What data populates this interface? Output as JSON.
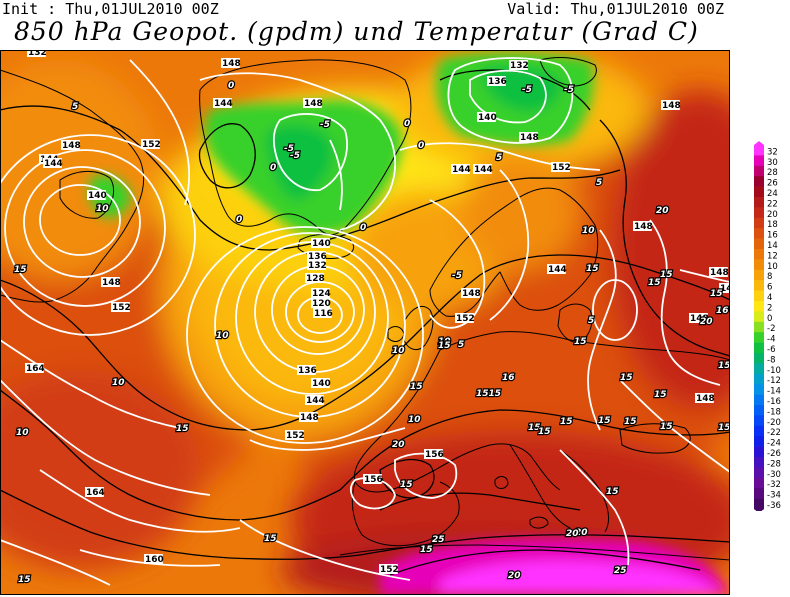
{
  "header": {
    "init": "Init : Thu,01JUL2010 00Z",
    "valid": "Valid: Thu,01JUL2010 00Z",
    "title": "850 hPa Geopot. (gpdm) und Temperatur (Grad C)"
  },
  "colors": {
    "land_border": "#000000",
    "geopotential_contour": "#ffffff",
    "temperature_contour": "#000000"
  },
  "legend": {
    "values": [
      "32",
      "30",
      "28",
      "26",
      "24",
      "22",
      "20",
      "18",
      "16",
      "14",
      "12",
      "10",
      "8",
      "6",
      "4",
      "2",
      "0",
      "-2",
      "-4",
      "-6",
      "-8",
      "-10",
      "-12",
      "-14",
      "-16",
      "-18",
      "-20",
      "-22",
      "-24",
      "-26",
      "-28",
      "-30",
      "-32",
      "-34",
      "-36"
    ],
    "colors": [
      "#ff33ff",
      "#e600b8",
      "#c00070",
      "#990030",
      "#a30a1a",
      "#b41a1a",
      "#c42818",
      "#d23c14",
      "#dc5010",
      "#e4640c",
      "#ec780a",
      "#f28c08",
      "#f7a20a",
      "#fbb80c",
      "#fdd010",
      "#ffe614",
      "#d8ec1a",
      "#88e020",
      "#38d02a",
      "#10c040",
      "#06b468",
      "#04aca0",
      "#04a0cc",
      "#0492e6",
      "#0478f0",
      "#0460f4",
      "#0648f6",
      "#0a30f6",
      "#1020e8",
      "#2a12d4",
      "#4410c0",
      "#5a0eac",
      "#6a0c98",
      "#5a087e",
      "#460664"
    ]
  },
  "map": {
    "geopotential_labels": [
      "148",
      "132",
      "136",
      "140",
      "144",
      "148",
      "152",
      "156",
      "160",
      "164",
      "116",
      "120",
      "124",
      "128"
    ],
    "temperature_labels": [
      "-5",
      "0",
      "5",
      "10",
      "15",
      "16",
      "20",
      "25"
    ],
    "contour_labels": [
      {
        "t": "132",
        "kind": "g"
      },
      {
        "t": "148",
        "kind": "g"
      },
      {
        "t": "144",
        "kind": "g"
      },
      {
        "t": "148",
        "kind": "g"
      },
      {
        "t": "136",
        "kind": "g"
      },
      {
        "t": "132",
        "kind": "g"
      },
      {
        "t": "140",
        "kind": "g"
      },
      {
        "t": "148",
        "kind": "g"
      },
      {
        "t": "144",
        "kind": "g"
      },
      {
        "t": "148",
        "kind": "g"
      },
      {
        "t": "152",
        "kind": "g"
      },
      {
        "t": "144",
        "kind": "g"
      },
      {
        "t": "140",
        "kind": "g"
      },
      {
        "t": "152",
        "kind": "g"
      },
      {
        "t": "144",
        "kind": "g"
      },
      {
        "t": "148",
        "kind": "g"
      },
      {
        "t": "148",
        "kind": "g"
      },
      {
        "t": "152",
        "kind": "g"
      },
      {
        "t": "144",
        "kind": "g"
      },
      {
        "t": "140",
        "kind": "g"
      },
      {
        "t": "136",
        "kind": "g"
      },
      {
        "t": "132",
        "kind": "g"
      },
      {
        "t": "128",
        "kind": "g"
      },
      {
        "t": "124",
        "kind": "g"
      },
      {
        "t": "120",
        "kind": "g"
      },
      {
        "t": "116",
        "kind": "g"
      },
      {
        "t": "148",
        "kind": "g"
      },
      {
        "t": "152",
        "kind": "g"
      },
      {
        "t": "144",
        "kind": "g"
      },
      {
        "t": "148",
        "kind": "g"
      },
      {
        "t": "148",
        "kind": "g"
      },
      {
        "t": "148",
        "kind": "g"
      },
      {
        "t": "148",
        "kind": "g"
      },
      {
        "t": "136",
        "kind": "g"
      },
      {
        "t": "140",
        "kind": "g"
      },
      {
        "t": "144",
        "kind": "g"
      },
      {
        "t": "148",
        "kind": "g"
      },
      {
        "t": "152",
        "kind": "g"
      },
      {
        "t": "156",
        "kind": "g"
      },
      {
        "t": "156",
        "kind": "g"
      },
      {
        "t": "164",
        "kind": "g"
      },
      {
        "t": "164",
        "kind": "g"
      },
      {
        "t": "160",
        "kind": "g"
      },
      {
        "t": "152",
        "kind": "g"
      },
      {
        "t": "148",
        "kind": "g"
      },
      {
        "t": "5",
        "kind": "t"
      },
      {
        "t": "0",
        "kind": "t"
      },
      {
        "t": "-5",
        "kind": "t"
      },
      {
        "t": "-5",
        "kind": "t"
      },
      {
        "t": "-5",
        "kind": "t"
      },
      {
        "t": "0",
        "kind": "t"
      },
      {
        "t": "0",
        "kind": "t"
      },
      {
        "t": "0",
        "kind": "t"
      },
      {
        "t": "-5",
        "kind": "t"
      },
      {
        "t": "-5",
        "kind": "t"
      },
      {
        "t": "5",
        "kind": "t"
      },
      {
        "t": "0",
        "kind": "t"
      },
      {
        "t": "0",
        "kind": "t"
      },
      {
        "t": "5",
        "kind": "t"
      },
      {
        "t": "10",
        "kind": "t"
      },
      {
        "t": "10",
        "kind": "t"
      },
      {
        "t": "15",
        "kind": "t"
      },
      {
        "t": "15",
        "kind": "t"
      },
      {
        "t": "10",
        "kind": "t"
      },
      {
        "t": "10",
        "kind": "t"
      },
      {
        "t": "-5",
        "kind": "t"
      },
      {
        "t": "5",
        "kind": "t"
      },
      {
        "t": "10",
        "kind": "t"
      },
      {
        "t": "5",
        "kind": "t"
      },
      {
        "t": "10",
        "kind": "t"
      },
      {
        "t": "15",
        "kind": "t"
      },
      {
        "t": "15",
        "kind": "t"
      },
      {
        "t": "10",
        "kind": "t"
      },
      {
        "t": "15",
        "kind": "t"
      },
      {
        "t": "15",
        "kind": "t"
      },
      {
        "t": "15",
        "kind": "t"
      },
      {
        "t": "15",
        "kind": "t"
      },
      {
        "t": "10",
        "kind": "t"
      },
      {
        "t": "15",
        "kind": "t"
      },
      {
        "t": "15",
        "kind": "t"
      },
      {
        "t": "1515",
        "kind": "t"
      },
      {
        "t": "15",
        "kind": "t"
      },
      {
        "t": "15",
        "kind": "t"
      },
      {
        "t": "15",
        "kind": "t"
      },
      {
        "t": "15",
        "kind": "t"
      },
      {
        "t": "15",
        "kind": "t"
      },
      {
        "t": "20",
        "kind": "t"
      },
      {
        "t": "15",
        "kind": "t"
      },
      {
        "t": "15",
        "kind": "t"
      },
      {
        "t": "20",
        "kind": "t"
      },
      {
        "t": "20",
        "kind": "t"
      },
      {
        "t": "20",
        "kind": "t"
      },
      {
        "t": "25",
        "kind": "t"
      },
      {
        "t": "25",
        "kind": "t"
      },
      {
        "t": "15",
        "kind": "t"
      },
      {
        "t": "15",
        "kind": "t"
      },
      {
        "t": "15",
        "kind": "t"
      },
      {
        "t": "15",
        "kind": "t"
      },
      {
        "t": "16",
        "kind": "t"
      },
      {
        "t": "15",
        "kind": "t"
      },
      {
        "t": "20",
        "kind": "t"
      },
      {
        "t": "16",
        "kind": "t"
      },
      {
        "t": "20",
        "kind": "t"
      },
      {
        "t": "15",
        "kind": "t"
      },
      {
        "t": "15",
        "kind": "t"
      }
    ]
  }
}
